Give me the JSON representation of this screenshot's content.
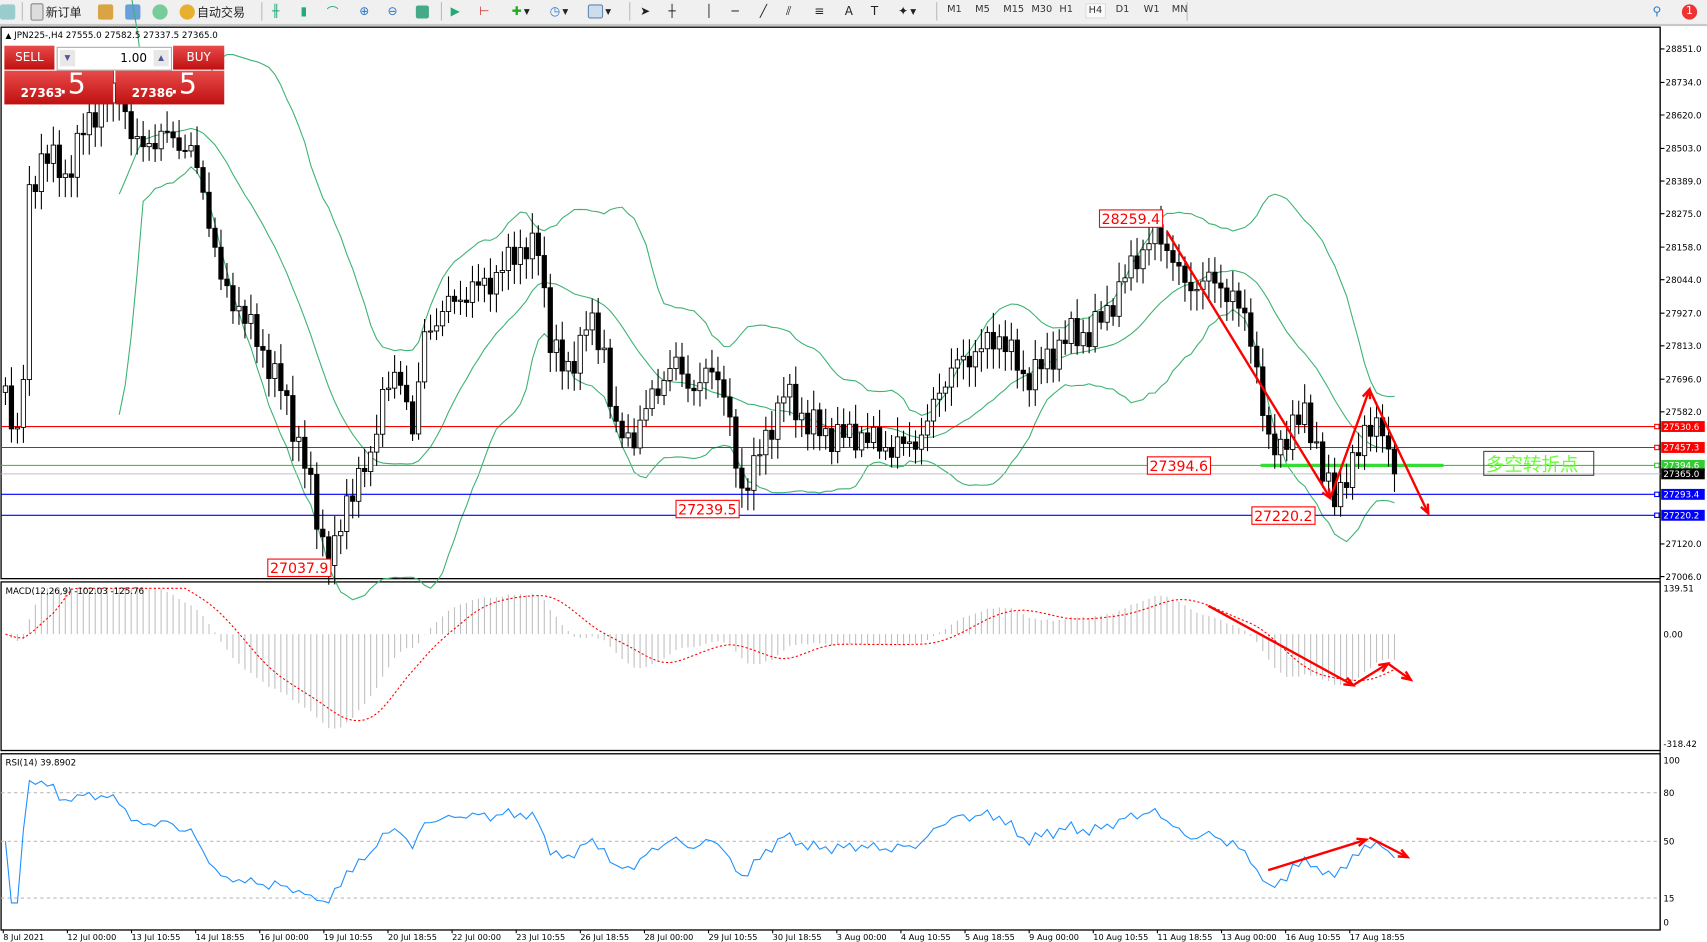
{
  "toolbar": {
    "new_order": "新订单",
    "auto_trading": "自动交易",
    "timeframes": [
      "M1",
      "M5",
      "M15",
      "M30",
      "H1",
      "H4",
      "D1",
      "W1",
      "MN"
    ],
    "active_timeframe": "H4",
    "notification_count": "1"
  },
  "chart": {
    "header": "JPN225-,H4  27555.0 27582.5 27337.5 27365.0",
    "trade_panel": {
      "sell": "SELL",
      "buy": "BUY",
      "volume": "1.00",
      "sell_big": "27363",
      "sell_pip": ".5",
      "buy_big": "27386",
      "buy_pip": ".5"
    },
    "price_axis": [
      "28851.0",
      "28734.0",
      "28620.0",
      "28503.0",
      "28389.0",
      "28275.0",
      "28158.0",
      "28044.0",
      "27927.0",
      "27813.0",
      "27696.0",
      "27582.0",
      "27120.0",
      "27006.0"
    ],
    "hlines": [
      {
        "price": 27530.6,
        "label": "27530.6",
        "color": "#ff0000"
      },
      {
        "price": 27457.3,
        "label": "27457.3",
        "color": "#ff0000"
      },
      {
        "price": 27394.6,
        "label": "27394.6",
        "color": "#33cc33"
      },
      {
        "price": 27365.0,
        "label": "27365.0",
        "color": "#000000"
      },
      {
        "price": 27293.4,
        "label": "27293.4",
        "color": "#0000ff"
      },
      {
        "price": 27220.2,
        "label": "27220.2",
        "color": "#0000ff"
      }
    ],
    "annotations": [
      "28259.4",
      "27394.6",
      "27239.5",
      "27037.9",
      "27220.2"
    ],
    "turning_point_text": "多空转折点",
    "price_waypoints": [
      [
        5,
        27650
      ],
      [
        20,
        27450
      ],
      [
        25,
        28300
      ],
      [
        40,
        28500
      ],
      [
        60,
        28400
      ],
      [
        75,
        28550
      ],
      [
        90,
        28650
      ],
      [
        110,
        28700
      ],
      [
        125,
        28500
      ],
      [
        150,
        28550
      ],
      [
        175,
        28500
      ],
      [
        190,
        28300
      ],
      [
        205,
        28000
      ],
      [
        220,
        27950
      ],
      [
        240,
        27800
      ],
      [
        260,
        27650
      ],
      [
        280,
        27400
      ],
      [
        295,
        27150
      ],
      [
        305,
        27050
      ],
      [
        320,
        27300
      ],
      [
        340,
        27400
      ],
      [
        350,
        27650
      ],
      [
        370,
        27700
      ],
      [
        380,
        27500
      ],
      [
        390,
        27850
      ],
      [
        410,
        27950
      ],
      [
        430,
        28000
      ],
      [
        455,
        28050
      ],
      [
        475,
        28150
      ],
      [
        495,
        28150
      ],
      [
        505,
        27850
      ],
      [
        520,
        27700
      ],
      [
        540,
        27900
      ],
      [
        555,
        27800
      ],
      [
        565,
        27500
      ],
      [
        585,
        27500
      ],
      [
        600,
        27650
      ],
      [
        620,
        27750
      ],
      [
        640,
        27650
      ],
      [
        655,
        27750
      ],
      [
        665,
        27650
      ],
      [
        680,
        27300
      ],
      [
        700,
        27450
      ],
      [
        720,
        27650
      ],
      [
        740,
        27550
      ],
      [
        760,
        27500
      ],
      [
        790,
        27500
      ],
      [
        820,
        27450
      ],
      [
        850,
        27500
      ],
      [
        860,
        27650
      ],
      [
        880,
        27750
      ],
      [
        900,
        27800
      ],
      [
        920,
        27850
      ],
      [
        940,
        27700
      ],
      [
        960,
        27750
      ],
      [
        980,
        27850
      ],
      [
        1000,
        27850
      ],
      [
        1020,
        27950
      ],
      [
        1040,
        28100
      ],
      [
        1060,
        28200
      ],
      [
        1075,
        28150
      ],
      [
        1090,
        28000
      ],
      [
        1105,
        28050
      ],
      [
        1130,
        28000
      ],
      [
        1150,
        27850
      ],
      [
        1165,
        27450
      ],
      [
        1185,
        27500
      ],
      [
        1200,
        27600
      ],
      [
        1215,
        27350
      ],
      [
        1225,
        27300
      ],
      [
        1240,
        27350
      ],
      [
        1255,
        27550
      ],
      [
        1270,
        27500
      ],
      [
        1282,
        27365
      ]
    ]
  },
  "macd": {
    "label": "MACD(12,26,9) -102.03 -125.76",
    "axis": [
      "139.51",
      "0.00",
      "-318.42"
    ]
  },
  "rsi": {
    "label": "RSI(14) 39.8902",
    "axis": [
      "100",
      "80",
      "50",
      "15",
      "0"
    ]
  },
  "time_axis": [
    "8 Jul 2021",
    "12 Jul 00:00",
    "13 Jul 10:55",
    "14 Jul 18:55",
    "16 Jul 00:00",
    "19 Jul 10:55",
    "20 Jul 18:55",
    "22 Jul 00:00",
    "23 Jul 10:55",
    "26 Jul 18:55",
    "28 Jul 00:00",
    "29 Jul 10:55",
    "30 Jul 18:55",
    "3 Aug 00:00",
    "4 Aug 10:55",
    "5 Aug 18:55",
    "9 Aug 00:00",
    "10 Aug 10:55",
    "11 Aug 18:55",
    "13 Aug 00:00",
    "16 Aug 10:55",
    "17 Aug 18:55"
  ],
  "colors": {
    "bands": "#3cb371",
    "arrows": "#ff0000",
    "macd_signal": "#ff0000",
    "histogram": "#c0c0c0",
    "rsi": "#1e90ff"
  }
}
